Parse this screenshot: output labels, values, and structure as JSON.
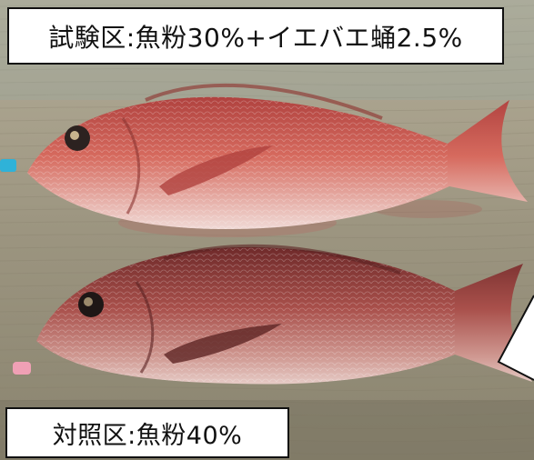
{
  "labels": {
    "test_group": "試験区:魚粉30%+イエバエ蛹2.5%",
    "control_group": "対照区:魚粉40%"
  },
  "colors": {
    "board": "#a29b86",
    "fish_red": "#c9574f",
    "fish_dark": "#7a2f2e",
    "label_bg": "#ffffff",
    "label_border": "#111111"
  },
  "icons": {
    "fish_top": "red-sea-bream-fish",
    "fish_bottom": "red-sea-bream-fish"
  }
}
